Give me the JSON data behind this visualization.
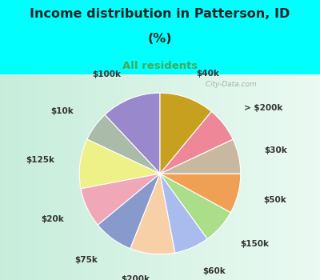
{
  "title_line1": "Income distribution in Patterson, ID",
  "title_line2": "(%)",
  "subtitle": "All residents",
  "title_color": "#222222",
  "subtitle_color": "#44aa55",
  "bg_color": "#00ffff",
  "chart_bg_left": "#c8edd8",
  "chart_bg_right": "#e8f8f0",
  "labels": [
    "$100k",
    "$10k",
    "$125k",
    "$20k",
    "$75k",
    "$200k",
    "$60k",
    "$150k",
    "$50k",
    "$30k",
    "> $200k",
    "$40k"
  ],
  "values": [
    12,
    6,
    10,
    8,
    8,
    9,
    7,
    7,
    8,
    7,
    7,
    11
  ],
  "colors": [
    "#9988cc",
    "#aabbaa",
    "#eef088",
    "#f0a8b8",
    "#8899cc",
    "#f8d0a8",
    "#aabbee",
    "#aade88",
    "#f0a055",
    "#c8b8a0",
    "#ee8898",
    "#c8a020"
  ],
  "startangle": 90,
  "label_fontsize": 7.5,
  "watermark": "  City-Data.com",
  "title_fontsize": 11.5,
  "subtitle_fontsize": 9.5
}
